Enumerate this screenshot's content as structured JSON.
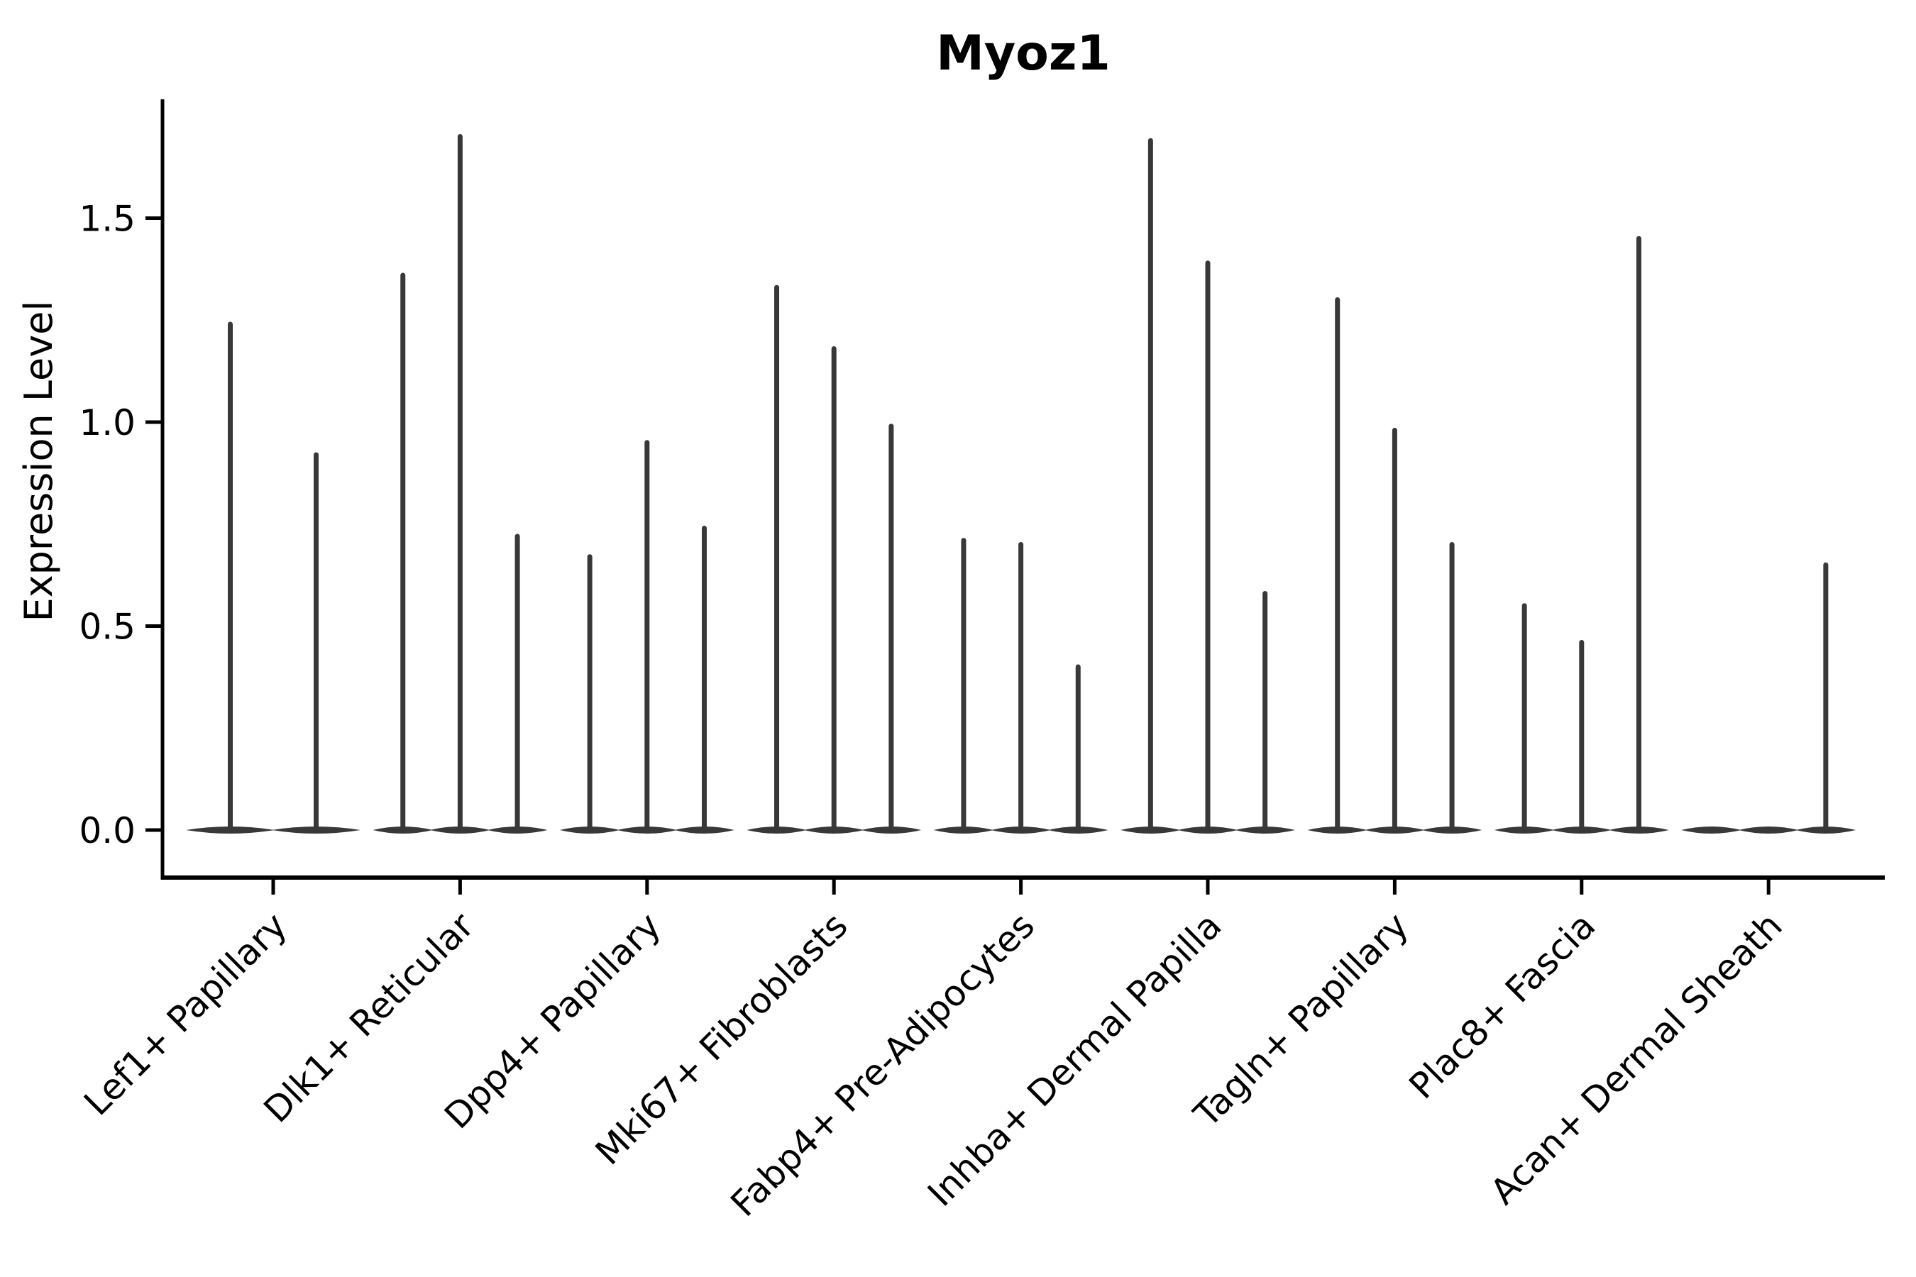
{
  "chart_data": {
    "type": "violin",
    "title": "Myoz1",
    "ylabel": "Expression Level",
    "xlabel": "",
    "yticks": [
      0.0,
      0.5,
      1.0,
      1.5
    ],
    "ytick_labels": [
      "0.0",
      "0.5",
      "1.0",
      "1.5"
    ],
    "ylim": [
      -0.12,
      1.79
    ],
    "grid": false,
    "legend": "none",
    "x_tick_rotation_degrees": 45,
    "violin_style": "needle-thin violins: wide flat lens at expression 0 with a thin spike up to the max expression value",
    "categories": [
      "Lef1+ Papillary",
      "Dlk1+ Reticular",
      "Dpp4+ Papillary",
      "Mki67+ Fibroblasts",
      "Fabp4+ Pre-Adipocytes",
      "Inhba+ Dermal Papilla",
      "Tagln+ Papillary",
      "Plac8+ Fascia",
      "Acan+ Dermal Sheath"
    ],
    "violin_max_expression_per_category": [
      [
        1.24,
        0.92
      ],
      [
        1.36,
        1.7,
        0.72
      ],
      [
        0.67,
        0.95,
        0.74
      ],
      [
        1.33,
        1.18,
        0.99
      ],
      [
        0.71,
        0.7,
        0.4
      ],
      [
        1.69,
        1.39,
        0.58
      ],
      [
        1.3,
        0.98,
        0.7
      ],
      [
        0.55,
        0.46,
        1.45
      ],
      [
        0.0,
        0.0,
        0.65
      ]
    ],
    "colors": {
      "violin": "#383838",
      "axis": "#000000",
      "text": "#000000",
      "background": "#ffffff"
    }
  }
}
